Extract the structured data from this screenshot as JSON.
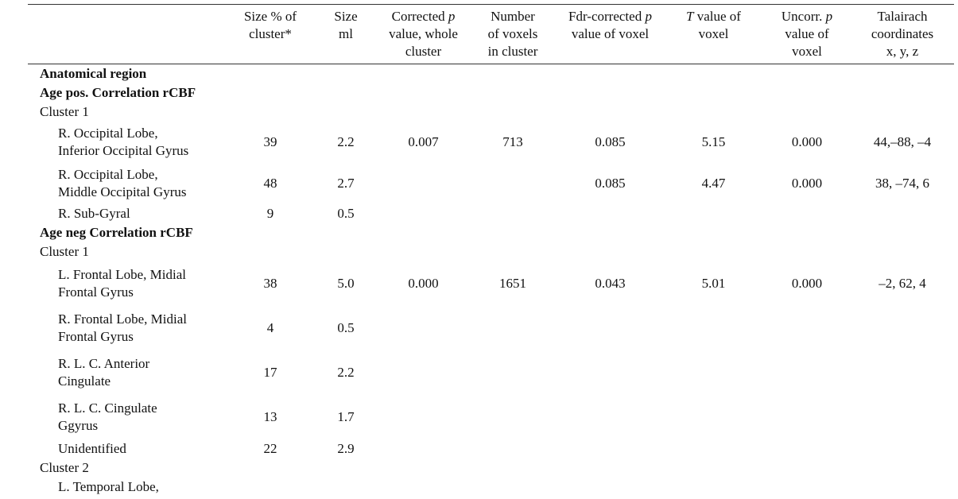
{
  "table": {
    "header": [
      [
        [
          {
            "t": "Size % of"
          }
        ],
        [
          {
            "t": "cluster*"
          }
        ]
      ],
      [
        [
          {
            "t": "Size"
          }
        ],
        [
          {
            "t": "ml"
          }
        ]
      ],
      [
        [
          {
            "t": "Corrected "
          },
          {
            "t": "p",
            "italic": true
          }
        ],
        [
          {
            "t": "value, whole"
          }
        ],
        [
          {
            "t": "cluster"
          }
        ]
      ],
      [
        [
          {
            "t": "Number"
          }
        ],
        [
          {
            "t": "of voxels"
          }
        ],
        [
          {
            "t": "in cluster"
          }
        ]
      ],
      [
        [
          {
            "t": "Fdr-corrected "
          },
          {
            "t": "p",
            "italic": true
          }
        ],
        [
          {
            "t": "value of voxel"
          }
        ]
      ],
      [
        [
          {
            "t": "T",
            "italic": true
          },
          {
            "t": " value of"
          }
        ],
        [
          {
            "t": "voxel"
          }
        ]
      ],
      [
        [
          {
            "t": "Uncorr. "
          },
          {
            "t": "p",
            "italic": true
          }
        ],
        [
          {
            "t": "value of"
          }
        ],
        [
          {
            "t": "voxel"
          }
        ]
      ],
      [
        [
          {
            "t": "Talairach"
          }
        ],
        [
          {
            "t": "coordinates"
          }
        ],
        [
          {
            "t": "x, y, z"
          }
        ]
      ]
    ],
    "rows": [
      {
        "kind": "section",
        "label": "Anatomical region"
      },
      {
        "kind": "section",
        "label": "Age pos. Correlation rCBF"
      },
      {
        "kind": "cluster",
        "label": "Cluster 1"
      },
      {
        "kind": "item",
        "region": [
          "R. Occipital Lobe,",
          "Inferior Occipital Gyrus"
        ],
        "cells": [
          "39",
          "2.2",
          "0.007",
          "713",
          "0.085",
          "5.15",
          "0.000",
          "44,–88, –4"
        ]
      },
      {
        "kind": "item",
        "region": [
          "R. Occipital Lobe,",
          "Middle Occipital Gyrus"
        ],
        "cells": [
          "48",
          "2.7",
          null,
          null,
          "0.085",
          "4.47",
          "0.000",
          "38, –74, 6"
        ]
      },
      {
        "kind": "item",
        "region": [
          "R. Sub-Gyral"
        ],
        "cells": [
          "9",
          "0.5",
          null,
          null,
          null,
          null,
          null,
          null
        ]
      },
      {
        "kind": "section",
        "label": "Age neg Correlation rCBF"
      },
      {
        "kind": "cluster",
        "label": "Cluster 1"
      },
      {
        "kind": "item",
        "region": [
          "L. Frontal Lobe, Midial",
          "Frontal Gyrus"
        ],
        "cells": [
          "38",
          "5.0",
          "0.000",
          "1651",
          "0.043",
          "5.01",
          "0.000",
          "–2, 62, 4"
        ]
      },
      {
        "kind": "item",
        "region": [
          "R. Frontal Lobe, Midial",
          "Frontal Gyrus"
        ],
        "cells": [
          "4",
          "0.5",
          null,
          null,
          null,
          null,
          null,
          null
        ]
      },
      {
        "kind": "item",
        "region": [
          "R. L. C. Anterior",
          "Cingulate"
        ],
        "cells": [
          "17",
          "2.2",
          null,
          null,
          null,
          null,
          null,
          null
        ]
      },
      {
        "kind": "item",
        "region": [
          "R. L. C. Cingulate",
          "Ggyrus"
        ],
        "cells": [
          "13",
          "1.7",
          null,
          null,
          null,
          null,
          null,
          null
        ]
      },
      {
        "kind": "item",
        "region": [
          "Unidentified"
        ],
        "cells": [
          "22",
          "2.9",
          null,
          null,
          null,
          null,
          null,
          null
        ]
      },
      {
        "kind": "cluster",
        "label": "Cluster 2"
      },
      {
        "kind": "item",
        "region": [
          "L. Temporal Lobe,"
        ],
        "cells": [
          null,
          null,
          null,
          null,
          null,
          null,
          null,
          null
        ]
      }
    ]
  }
}
